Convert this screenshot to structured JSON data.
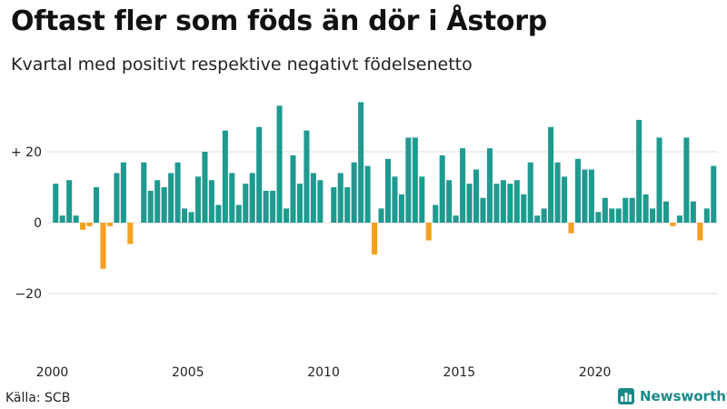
{
  "title": "Oftast fler som föds än dör i Åstorp",
  "subtitle": "Kvartal med positivt respektive negativt födelsenetto",
  "source": "Källa: SCB",
  "brand": "Newsworthy",
  "colors": {
    "positive": "#1f9a8f",
    "negative": "#f4a020",
    "grid": "#dddddd",
    "brand": "#1a8a87"
  },
  "chart_data": {
    "type": "bar",
    "title": "Oftast fler som föds än dör i Åstorp",
    "xlabel": "",
    "ylabel": "",
    "ylim": [
      -37,
      37
    ],
    "xlim": [
      2000,
      2024.5
    ],
    "yticks": [
      {
        "value": 20,
        "label": "+ 20"
      },
      {
        "value": 0,
        "label": "0"
      },
      {
        "value": -20,
        "label": "−20"
      }
    ],
    "xticks": [
      {
        "value": 2000,
        "label": "2000"
      },
      {
        "value": 2005,
        "label": "2005"
      },
      {
        "value": 2010,
        "label": "2010"
      },
      {
        "value": 2015,
        "label": "2015"
      },
      {
        "value": 2020,
        "label": "2020"
      }
    ],
    "start_year": 2000,
    "values": [
      11,
      2,
      12,
      2,
      -2,
      -1,
      10,
      -13,
      -1,
      14,
      17,
      -6,
      0,
      17,
      9,
      12,
      10,
      14,
      17,
      4,
      3,
      13,
      20,
      12,
      5,
      26,
      14,
      5,
      11,
      14,
      27,
      9,
      9,
      33,
      4,
      19,
      11,
      26,
      14,
      12,
      0,
      10,
      14,
      10,
      17,
      34,
      16,
      -9,
      4,
      18,
      13,
      8,
      24,
      24,
      13,
      -5,
      5,
      19,
      12,
      2,
      21,
      11,
      15,
      7,
      21,
      11,
      12,
      11,
      12,
      8,
      17,
      2,
      4,
      27,
      17,
      13,
      -3,
      18,
      15,
      15,
      3,
      7,
      4,
      4,
      7,
      7,
      29,
      8,
      4,
      24,
      6,
      -1,
      2,
      24,
      6,
      -5,
      4,
      16
    ]
  }
}
